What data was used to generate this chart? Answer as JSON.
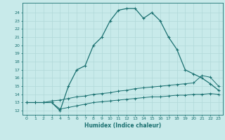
{
  "title": "",
  "xlabel": "Humidex (Indice chaleur)",
  "bg_color": "#c8eaea",
  "line_color": "#1a7070",
  "grid_color": "#b0d8d8",
  "xlim": [
    -0.5,
    23.5
  ],
  "ylim": [
    11.5,
    25.2
  ],
  "yticks": [
    12,
    13,
    14,
    15,
    16,
    17,
    18,
    19,
    20,
    21,
    22,
    23,
    24
  ],
  "xticks": [
    0,
    1,
    2,
    3,
    4,
    5,
    6,
    7,
    8,
    9,
    10,
    11,
    12,
    13,
    14,
    15,
    16,
    17,
    18,
    19,
    20,
    21,
    22,
    23
  ],
  "curve1_x": [
    0,
    1,
    2,
    3,
    4,
    5,
    6,
    7,
    8,
    9,
    10,
    11,
    12,
    13,
    14,
    15,
    16,
    17,
    18,
    19,
    20,
    21,
    22,
    23
  ],
  "curve1_y": [
    13,
    13,
    13,
    13,
    12,
    15,
    17,
    17.5,
    20,
    21,
    23,
    24.3,
    24.5,
    24.5,
    23.3,
    24,
    23,
    21,
    19.5,
    17,
    16.5,
    16,
    15.3,
    14.5
  ],
  "curve2_x": [
    0,
    1,
    2,
    3,
    4,
    5,
    6,
    7,
    8,
    9,
    10,
    11,
    12,
    13,
    14,
    15,
    16,
    17,
    18,
    19,
    20,
    21,
    22,
    23
  ],
  "curve2_y": [
    13,
    13,
    13,
    13.2,
    13.3,
    13.5,
    13.7,
    13.8,
    14.0,
    14.1,
    14.2,
    14.4,
    14.5,
    14.7,
    14.8,
    14.9,
    15.0,
    15.1,
    15.2,
    15.3,
    15.4,
    16.3,
    16.1,
    15.0
  ],
  "curve3_x": [
    0,
    1,
    2,
    3,
    4,
    5,
    6,
    7,
    8,
    9,
    10,
    11,
    12,
    13,
    14,
    15,
    16,
    17,
    18,
    19,
    20,
    21,
    22,
    23
  ],
  "curve3_y": [
    13,
    13,
    13,
    13.0,
    12.2,
    12.4,
    12.6,
    12.8,
    13.0,
    13.1,
    13.2,
    13.3,
    13.4,
    13.5,
    13.6,
    13.7,
    13.7,
    13.8,
    13.9,
    13.9,
    14.0,
    14.0,
    14.1,
    14.0
  ]
}
